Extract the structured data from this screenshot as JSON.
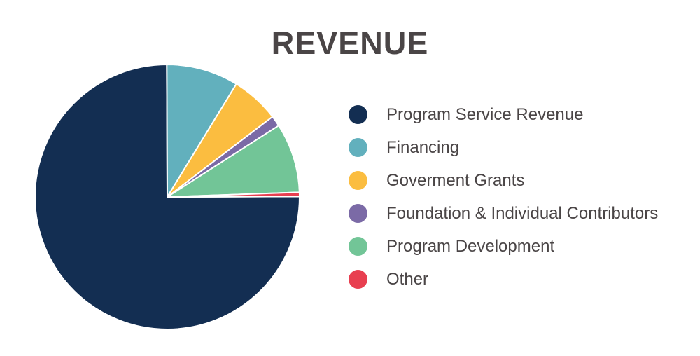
{
  "chart_data": {
    "type": "pie",
    "title": "REVENUE",
    "legend_position": "right",
    "slices": [
      {
        "label": "Program Service Revenue",
        "value": 75.0,
        "color": "#132e52"
      },
      {
        "label": "Financing",
        "value": 8.8,
        "color": "#62b0bd"
      },
      {
        "label": "Goverment Grants",
        "value": 5.9,
        "color": "#fbbd40"
      },
      {
        "label": "Foundation & Individual Contributors",
        "value": 1.3,
        "color": "#7b6aa6"
      },
      {
        "label": "Program Development",
        "value": 8.5,
        "color": "#72c597"
      },
      {
        "label": "Other",
        "value": 0.5,
        "color": "#e83f50"
      }
    ]
  }
}
